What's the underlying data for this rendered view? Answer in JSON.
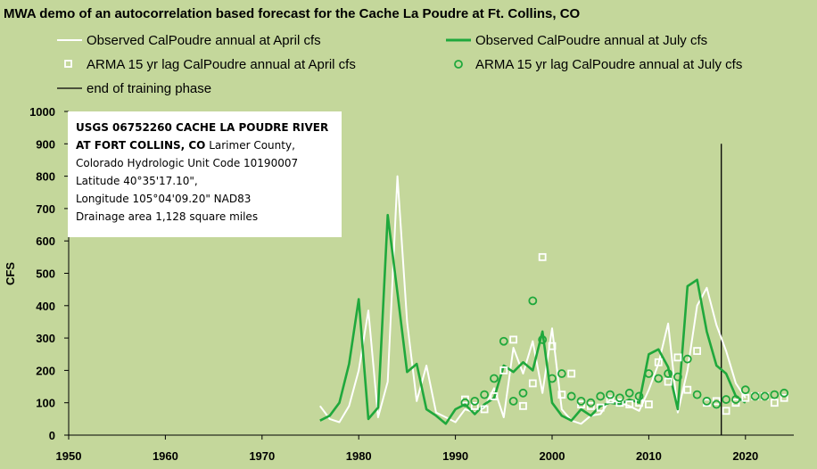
{
  "title": "MWA demo of an autocorrelation based forecast for the Cache La Poudre at Ft. Collins, CO",
  "legend": [
    {
      "label": "Observed CalPoudre annual at April cfs",
      "marker": "line",
      "color": "#ffffff"
    },
    {
      "label": "Observed CalPoudre annual at July cfs",
      "marker": "line",
      "color": "#1fa83c"
    },
    {
      "label": "ARMA 15 yr lag CalPoudre annual at April cfs",
      "marker": "square",
      "color": "#ffffff"
    },
    {
      "label": "ARMA 15 yr lag CalPoudre annual at July cfs",
      "marker": "circle",
      "color": "#1fa83c"
    },
    {
      "label": "end of training phase",
      "marker": "vline",
      "color": "#000000"
    }
  ],
  "info_box": {
    "line1": "USGS 06752260 CACHE LA POUDRE RIVER",
    "line2_bold": "AT FORT COLLINS, CO",
    "line2_rest": " Larimer County,",
    "line3": "Colorado Hydrologic Unit Code 10190007",
    "line4": "Latitude  40°35'17.10\",",
    "line5": "Longitude 105°04'09.20\"  NAD83",
    "line6": "Drainage area 1,128  square miles"
  },
  "chart_data": {
    "type": "line",
    "title": "MWA demo of an autocorrelation based forecast for the Cache La Poudre at Ft. Collins, CO",
    "xlabel": "",
    "ylabel": "CFS",
    "xlim": [
      1950,
      2025
    ],
    "ylim": [
      0,
      1000
    ],
    "xticks": [
      "1950",
      "1960",
      "1970",
      "1980",
      "1990",
      "2000",
      "2010",
      "2020"
    ],
    "yticks": [
      "0",
      "100",
      "200",
      "300",
      "400",
      "500",
      "600",
      "700",
      "800",
      "900",
      "1000"
    ],
    "grid": false,
    "legend_position": "top",
    "end_of_training_x": 2017.5,
    "series": [
      {
        "name": "Observed CalPoudre annual at April cfs",
        "style": "line",
        "color": "#ffffff",
        "x": [
          1976,
          1977,
          1978,
          1979,
          1980,
          1981,
          1982,
          1983,
          1984,
          1985,
          1986,
          1987,
          1988,
          1989,
          1990,
          1991,
          1992,
          1993,
          1994,
          1995,
          1996,
          1997,
          1998,
          1999,
          2000,
          2001,
          2002,
          2003,
          2004,
          2005,
          2006,
          2007,
          2008,
          2009,
          2010,
          2011,
          2012,
          2013,
          2014,
          2015,
          2016,
          2017,
          2018,
          2019,
          2020
        ],
        "y": [
          90,
          50,
          40,
          90,
          200,
          385,
          55,
          165,
          800,
          350,
          105,
          215,
          70,
          55,
          40,
          80,
          70,
          85,
          145,
          55,
          270,
          190,
          290,
          130,
          330,
          80,
          45,
          35,
          60,
          65,
          110,
          100,
          90,
          75,
          140,
          220,
          345,
          70,
          200,
          400,
          455,
          340,
          260,
          160,
          115
        ]
      },
      {
        "name": "Observed CalPoudre annual at July cfs",
        "style": "line",
        "color": "#1fa83c",
        "x": [
          1976,
          1977,
          1978,
          1979,
          1980,
          1981,
          1982,
          1983,
          1984,
          1985,
          1986,
          1987,
          1988,
          1989,
          1990,
          1991,
          1992,
          1993,
          1994,
          1995,
          1996,
          1997,
          1998,
          1999,
          2000,
          2001,
          2002,
          2003,
          2004,
          2005,
          2006,
          2007,
          2008,
          2009,
          2010,
          2011,
          2012,
          2013,
          2014,
          2015,
          2016,
          2017,
          2018,
          2019,
          2020
        ],
        "y": [
          45,
          60,
          100,
          220,
          420,
          50,
          85,
          680,
          440,
          195,
          220,
          80,
          60,
          35,
          80,
          95,
          65,
          95,
          115,
          215,
          195,
          225,
          200,
          320,
          100,
          60,
          45,
          80,
          60,
          90,
          100,
          95,
          110,
          100,
          250,
          265,
          210,
          80,
          460,
          480,
          320,
          215,
          190,
          120,
          100
        ]
      },
      {
        "name": "ARMA 15 yr lag CalPoudre annual at April cfs",
        "style": "square",
        "color": "#ffffff",
        "x": [
          1991,
          1992,
          1993,
          1994,
          1995,
          1996,
          1997,
          1998,
          1999,
          2000,
          2001,
          2002,
          2003,
          2004,
          2005,
          2006,
          2007,
          2008,
          2009,
          2010,
          2011,
          2012,
          2013,
          2014,
          2015,
          2016,
          2017,
          2018,
          2019,
          2020,
          2021,
          2022,
          2023,
          2024
        ],
        "y": [
          110,
          90,
          80,
          120,
          200,
          295,
          90,
          160,
          550,
          275,
          125,
          190,
          95,
          90,
          85,
          110,
          100,
          95,
          100,
          95,
          225,
          165,
          240,
          140,
          260,
          100,
          105,
          75,
          100,
          115,
          120,
          120,
          100,
          115
        ]
      },
      {
        "name": "ARMA 15 yr lag CalPoudre annual at July cfs",
        "style": "circle",
        "color": "#1fa83c",
        "x": [
          1991,
          1992,
          1993,
          1994,
          1995,
          1996,
          1997,
          1998,
          1999,
          2000,
          2001,
          2002,
          2003,
          2004,
          2005,
          2006,
          2007,
          2008,
          2009,
          2010,
          2011,
          2012,
          2013,
          2014,
          2015,
          2016,
          2017,
          2018,
          2019,
          2020,
          2021,
          2022,
          2023,
          2024
        ],
        "y": [
          100,
          105,
          125,
          175,
          290,
          105,
          130,
          415,
          295,
          175,
          190,
          120,
          105,
          100,
          120,
          125,
          115,
          130,
          120,
          190,
          175,
          190,
          180,
          235,
          125,
          105,
          95,
          110,
          110,
          140,
          120,
          120,
          125,
          130
        ]
      }
    ]
  }
}
